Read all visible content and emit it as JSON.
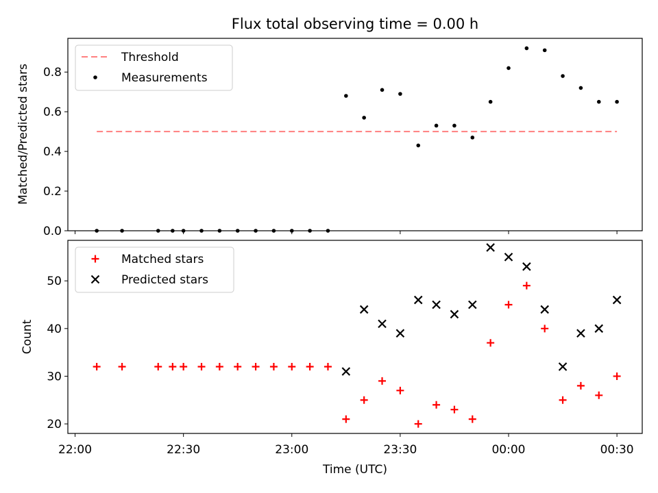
{
  "chart_data": [
    {
      "type": "scatter",
      "title": "Flux total observing time = 0.00 h",
      "xlabel": "",
      "ylabel": "Matched/Predicted stars",
      "xlim": [
        "21:58",
        "00:37"
      ],
      "ylim": [
        0,
        0.97
      ],
      "yticks": [
        0.0,
        0.2,
        0.4,
        0.6,
        0.8
      ],
      "ytick_labels": [
        "0.0",
        "0.2",
        "0.4",
        "0.6",
        "0.8"
      ],
      "legend": "top-left",
      "grid": false,
      "threshold": {
        "name": "Threshold",
        "value": 0.5,
        "x": [
          "22:06",
          "00:30"
        ],
        "color": "#ff7f7f",
        "style": "dashed"
      },
      "series": [
        {
          "name": "Measurements",
          "color": "#000000",
          "x": [
            "22:06",
            "22:13",
            "22:23",
            "22:27",
            "22:30",
            "22:35",
            "22:40",
            "22:45",
            "22:50",
            "22:55",
            "23:00",
            "23:05",
            "23:10",
            "23:15",
            "23:20",
            "23:25",
            "23:30",
            "23:35",
            "23:40",
            "23:45",
            "23:50",
            "23:55",
            "00:00",
            "00:05",
            "00:10",
            "00:15",
            "00:20",
            "00:25",
            "00:30"
          ],
          "y": [
            0,
            0,
            0,
            0,
            0,
            0,
            0,
            0,
            0,
            0,
            0,
            0,
            0,
            0.68,
            0.57,
            0.71,
            0.69,
            0.43,
            0.53,
            0.53,
            0.47,
            0.65,
            0.82,
            0.92,
            0.91,
            0.78,
            0.72,
            0.65,
            0.65
          ]
        }
      ]
    },
    {
      "type": "scatter",
      "title": "",
      "xlabel": "Time (UTC)",
      "ylabel": "Count",
      "xlim": [
        "21:58",
        "00:37"
      ],
      "ylim": [
        18,
        58.5
      ],
      "yticks": [
        20,
        30,
        40,
        50
      ],
      "ytick_labels": [
        "20",
        "30",
        "40",
        "50"
      ],
      "xtick_labels": [
        "22:00",
        "22:30",
        "23:00",
        "23:30",
        "00:00",
        "00:30"
      ],
      "legend": "top-left",
      "grid": false,
      "series": [
        {
          "name": "Matched stars",
          "color": "#ff0000",
          "marker": "plus",
          "x": [
            "22:06",
            "22:13",
            "22:23",
            "22:27",
            "22:30",
            "22:35",
            "22:40",
            "22:45",
            "22:50",
            "22:55",
            "23:00",
            "23:05",
            "23:10",
            "23:15",
            "23:20",
            "23:25",
            "23:30",
            "23:35",
            "23:40",
            "23:45",
            "23:50",
            "23:55",
            "00:00",
            "00:05",
            "00:10",
            "00:15",
            "00:20",
            "00:25",
            "00:30"
          ],
          "y": [
            32,
            32,
            32,
            32,
            32,
            32,
            32,
            32,
            32,
            32,
            32,
            32,
            32,
            21,
            25,
            29,
            27,
            20,
            24,
            23,
            21,
            37,
            45,
            49,
            40,
            25,
            28,
            26,
            30
          ]
        },
        {
          "name": "Predicted stars",
          "color": "#000000",
          "marker": "x",
          "x": [
            "23:15",
            "23:20",
            "23:25",
            "23:30",
            "23:35",
            "23:40",
            "23:45",
            "23:50",
            "23:55",
            "00:00",
            "00:05",
            "00:10",
            "00:15",
            "00:20",
            "00:25",
            "00:30"
          ],
          "y": [
            31,
            44,
            41,
            39,
            46,
            45,
            43,
            45,
            57,
            55,
            53,
            44,
            32,
            39,
            40,
            46
          ]
        }
      ]
    }
  ]
}
